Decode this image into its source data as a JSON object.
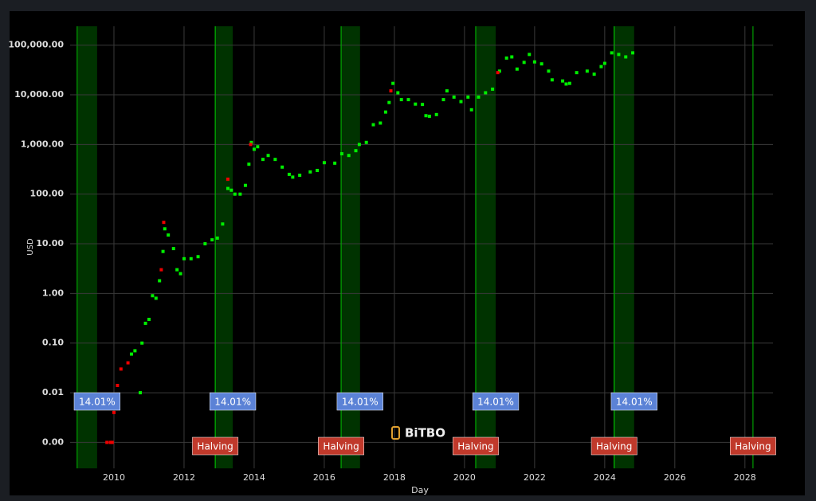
{
  "chart_data": {
    "type": "scatter",
    "x_label": "Day",
    "y_label": "USD",
    "watermark": "BiTBO",
    "log_scale": true,
    "grid": true,
    "xlim": [
      2008.75,
      2028.8
    ],
    "xticks": [
      2010,
      2012,
      2014,
      2016,
      2018,
      2020,
      2022,
      2024,
      2026,
      2028
    ],
    "ylim": [
      0.0003,
      240000
    ],
    "yticks": [
      {
        "value": 0.001,
        "label": "0.00"
      },
      {
        "value": 0.01,
        "label": "0.01"
      },
      {
        "value": 0.1,
        "label": "0.10"
      },
      {
        "value": 1,
        "label": "1.00"
      },
      {
        "value": 10,
        "label": "10.00"
      },
      {
        "value": 100,
        "label": "100.00"
      },
      {
        "value": 1000,
        "label": "1,000.00"
      },
      {
        "value": 10000,
        "label": "10,000.00"
      },
      {
        "value": 100000,
        "label": "100,000.00"
      }
    ],
    "bands": [
      {
        "start": 2008.95,
        "end": 2009.52,
        "label": "14.01%"
      },
      {
        "start": 2012.89,
        "end": 2013.39,
        "label": "14.01%"
      },
      {
        "start": 2016.48,
        "end": 2017.02,
        "label": "14.01%"
      },
      {
        "start": 2020.32,
        "end": 2020.89,
        "label": "14.01%"
      },
      {
        "start": 2024.27,
        "end": 2024.84,
        "label": "14.01%"
      }
    ],
    "halving_markers": [
      {
        "x": 2012.89,
        "label": "Halving"
      },
      {
        "x": 2016.48,
        "label": "Halving"
      },
      {
        "x": 2020.32,
        "label": "Halving"
      },
      {
        "x": 2024.27,
        "label": "Halving"
      },
      {
        "x": 2028.23,
        "label": "Halving"
      }
    ],
    "series": [
      {
        "color": "#00ee00",
        "x": [
          2010.5,
          2010.6,
          2010.75,
          2010.8,
          2010.9,
          2011.0,
          2011.1,
          2011.2,
          2011.3,
          2011.4,
          2011.45,
          2011.55,
          2011.7,
          2011.8,
          2011.9,
          2012.0,
          2012.2,
          2012.4,
          2012.6,
          2012.8,
          2012.95,
          2013.1,
          2013.25,
          2013.35,
          2013.45,
          2013.6,
          2013.75,
          2013.85,
          2013.92,
          2014.0,
          2014.1,
          2014.25,
          2014.4,
          2014.6,
          2014.8,
          2015.0,
          2015.1,
          2015.3,
          2015.6,
          2015.8,
          2016.0,
          2016.3,
          2016.5,
          2016.7,
          2016.9,
          2017.0,
          2017.2,
          2017.4,
          2017.6,
          2017.75,
          2017.85,
          2017.96,
          2018.1,
          2018.2,
          2018.4,
          2018.6,
          2018.8,
          2018.9,
          2019.0,
          2019.2,
          2019.4,
          2019.5,
          2019.7,
          2019.9,
          2020.1,
          2020.2,
          2020.4,
          2020.6,
          2020.8,
          2021.0,
          2021.2,
          2021.35,
          2021.5,
          2021.7,
          2021.85,
          2022.0,
          2022.2,
          2022.4,
          2022.5,
          2022.8,
          2022.9,
          2023.0,
          2023.2,
          2023.5,
          2023.7,
          2023.9,
          2024.0,
          2024.2,
          2024.4,
          2024.6,
          2024.8
        ],
        "values": [
          0.06,
          0.07,
          0.01,
          0.1,
          0.25,
          0.3,
          0.9,
          0.8,
          1.8,
          7,
          20,
          15,
          8,
          3,
          2.5,
          5,
          5,
          5.5,
          10,
          12,
          13,
          25,
          130,
          120,
          100,
          100,
          150,
          400,
          1100,
          800,
          900,
          500,
          600,
          500,
          350,
          250,
          220,
          240,
          280,
          300,
          430,
          420,
          650,
          600,
          750,
          1000,
          1100,
          2500,
          2700,
          4500,
          7000,
          17000,
          11000,
          8000,
          8000,
          6500,
          6400,
          3800,
          3700,
          4000,
          8000,
          12000,
          9000,
          7300,
          9000,
          5000,
          9000,
          11000,
          13000,
          30000,
          55000,
          58000,
          33000,
          45000,
          65000,
          46000,
          42000,
          30000,
          20000,
          19000,
          16500,
          17000,
          28000,
          30000,
          26000,
          37000,
          43000,
          70000,
          65000,
          58000,
          70000
        ]
      },
      {
        "color": "#ee0000",
        "x": [
          2009.8,
          2009.9,
          2009.95,
          2010.0,
          2010.1,
          2010.2,
          2010.4,
          2011.35,
          2011.42,
          2013.25,
          2013.9,
          2017.9,
          2020.95
        ],
        "values": [
          0.001,
          0.001,
          0.001,
          0.004,
          0.014,
          0.03,
          0.04,
          3,
          27,
          200,
          1000,
          12000,
          28000
        ]
      }
    ]
  }
}
